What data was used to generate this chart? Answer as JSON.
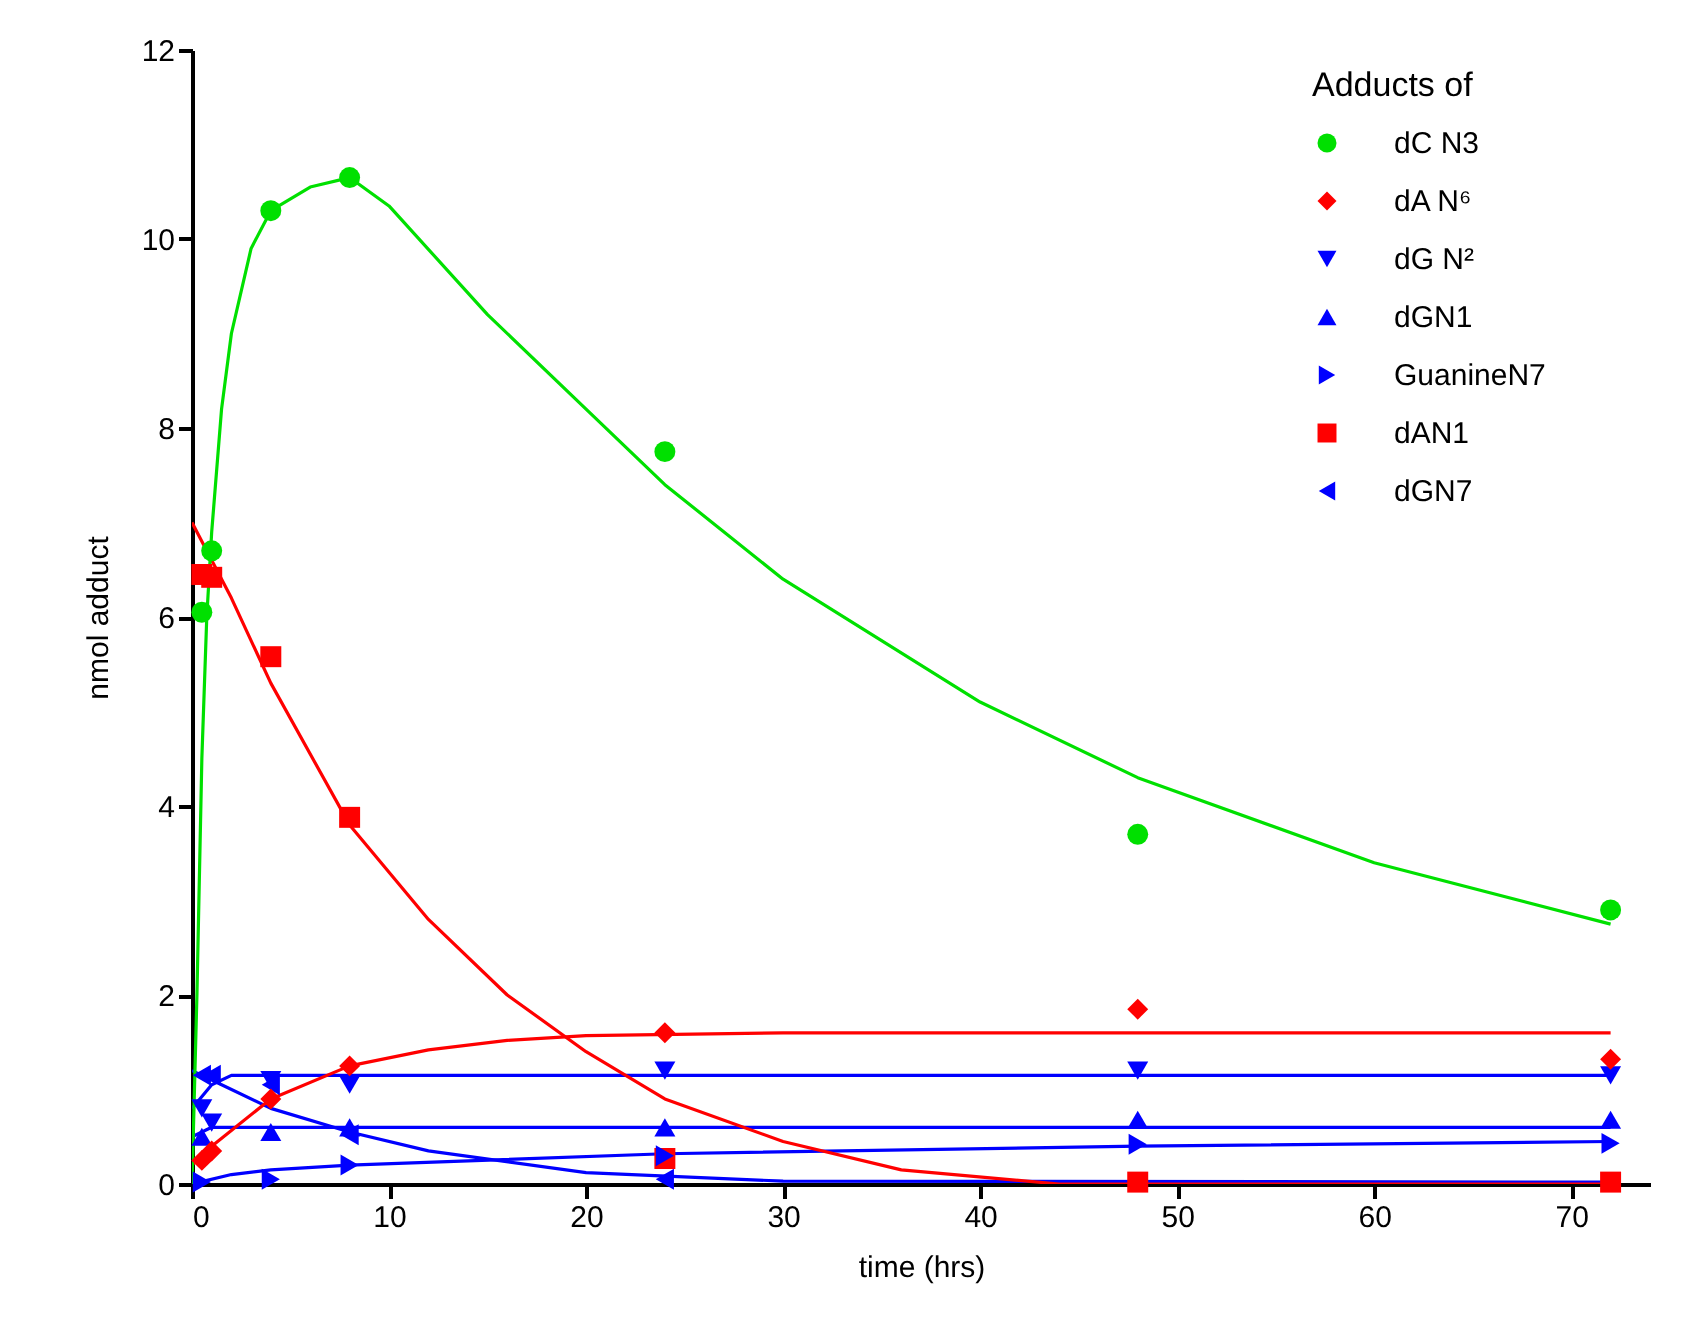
{
  "chart_data": {
    "type": "scatter",
    "xlabel": "time (hrs)",
    "ylabel": "nmol adduct",
    "legend_title": "Adducts of",
    "legend": "top right",
    "grid": false,
    "xlim": [
      0,
      74
    ],
    "xticks": [
      0,
      10,
      20,
      30,
      40,
      50,
      60,
      70
    ],
    "ylim": [
      0,
      12
    ],
    "yticks": [
      0,
      2,
      4,
      6,
      8,
      10,
      12
    ],
    "series": [
      {
        "name": "dC N3",
        "color": "#00e000",
        "marker": "circle",
        "x": [
          0.5,
          1,
          4,
          8,
          24,
          48,
          72
        ],
        "values": [
          6.05,
          6.7,
          10.3,
          10.65,
          7.75,
          3.7,
          2.9
        ]
      },
      {
        "name": "dA N⁶",
        "color": "#ff0000",
        "marker": "diamond",
        "x": [
          0.5,
          1,
          4,
          8,
          24,
          48,
          72
        ],
        "values": [
          0.25,
          0.35,
          0.9,
          1.25,
          1.6,
          1.85,
          1.32
        ]
      },
      {
        "name": "dG N²",
        "color": "#0000ff",
        "marker": "triangle-down",
        "x": [
          0.5,
          1,
          4,
          8,
          24,
          48,
          72
        ],
        "values": [
          0.8,
          0.65,
          1.1,
          1.05,
          1.2,
          1.2,
          1.15
        ]
      },
      {
        "name": "dGN1",
        "color": "#0000ff",
        "marker": "triangle-up",
        "x": [
          0.5,
          4,
          8,
          24,
          48,
          72
        ],
        "values": [
          0.5,
          0.55,
          0.6,
          0.6,
          0.68,
          0.68
        ]
      },
      {
        "name": "GuanineN7",
        "color": "#0000ff",
        "marker": "triangle-right",
        "x": [
          0.5,
          4,
          8,
          24,
          48,
          72
        ],
        "values": [
          0.02,
          0.05,
          0.2,
          0.3,
          0.42,
          0.43
        ]
      },
      {
        "name": "dAN1",
        "color": "#ff0000",
        "marker": "square",
        "x": [
          0.5,
          1,
          4,
          8,
          24,
          48,
          72
        ],
        "values": [
          6.45,
          6.42,
          5.58,
          3.88,
          0.27,
          0.02,
          0.02
        ]
      },
      {
        "name": "dGN7",
        "color": "#0000ff",
        "marker": "triangle-left",
        "x": [
          0.5,
          1,
          4,
          8,
          24
        ],
        "values": [
          1.15,
          1.15,
          1.05,
          0.52,
          0.05
        ]
      },
      {
        "type": "line",
        "color": "#00e000",
        "x": [
          0,
          0.25,
          0.5,
          0.75,
          1,
          1.5,
          2,
          3,
          4,
          6,
          8,
          10,
          15,
          20,
          24,
          30,
          40,
          48,
          60,
          72
        ],
        "values": [
          0,
          2,
          4.5,
          6,
          6.9,
          8.2,
          9,
          9.9,
          10.3,
          10.55,
          10.65,
          10.35,
          9.2,
          8.2,
          7.4,
          6.4,
          5.1,
          4.3,
          3.4,
          2.75
        ]
      },
      {
        "type": "line",
        "color": "#ff0000",
        "x": [
          0,
          2,
          4,
          8,
          12,
          16,
          20,
          24,
          30,
          36,
          44,
          48,
          72
        ],
        "values": [
          7,
          6.2,
          5.3,
          3.8,
          2.8,
          2,
          1.4,
          0.9,
          0.45,
          0.15,
          0,
          0,
          0
        ]
      },
      {
        "type": "line",
        "color": "#ff0000",
        "x": [
          0,
          1,
          4,
          8,
          12,
          16,
          20,
          30,
          72
        ],
        "values": [
          0.2,
          0.4,
          0.9,
          1.25,
          1.42,
          1.52,
          1.57,
          1.6,
          1.6
        ]
      },
      {
        "type": "line",
        "color": "#0000ff",
        "x": [
          0,
          1,
          2,
          72
        ],
        "values": [
          0.8,
          1.05,
          1.15,
          1.15
        ]
      },
      {
        "type": "line",
        "color": "#0000ff",
        "x": [
          0,
          1,
          72
        ],
        "values": [
          0.5,
          0.6,
          0.6
        ]
      },
      {
        "type": "line",
        "color": "#0000ff",
        "x": [
          0,
          2,
          4,
          8,
          24,
          48,
          72
        ],
        "values": [
          0,
          0.1,
          0.15,
          0.2,
          0.32,
          0.4,
          0.45
        ]
      },
      {
        "type": "line",
        "color": "#0000ff",
        "x": [
          0,
          1,
          4,
          8,
          12,
          20,
          30,
          72
        ],
        "values": [
          1.2,
          1.1,
          0.8,
          0.55,
          0.35,
          0.12,
          0.03,
          0.02
        ]
      }
    ]
  }
}
